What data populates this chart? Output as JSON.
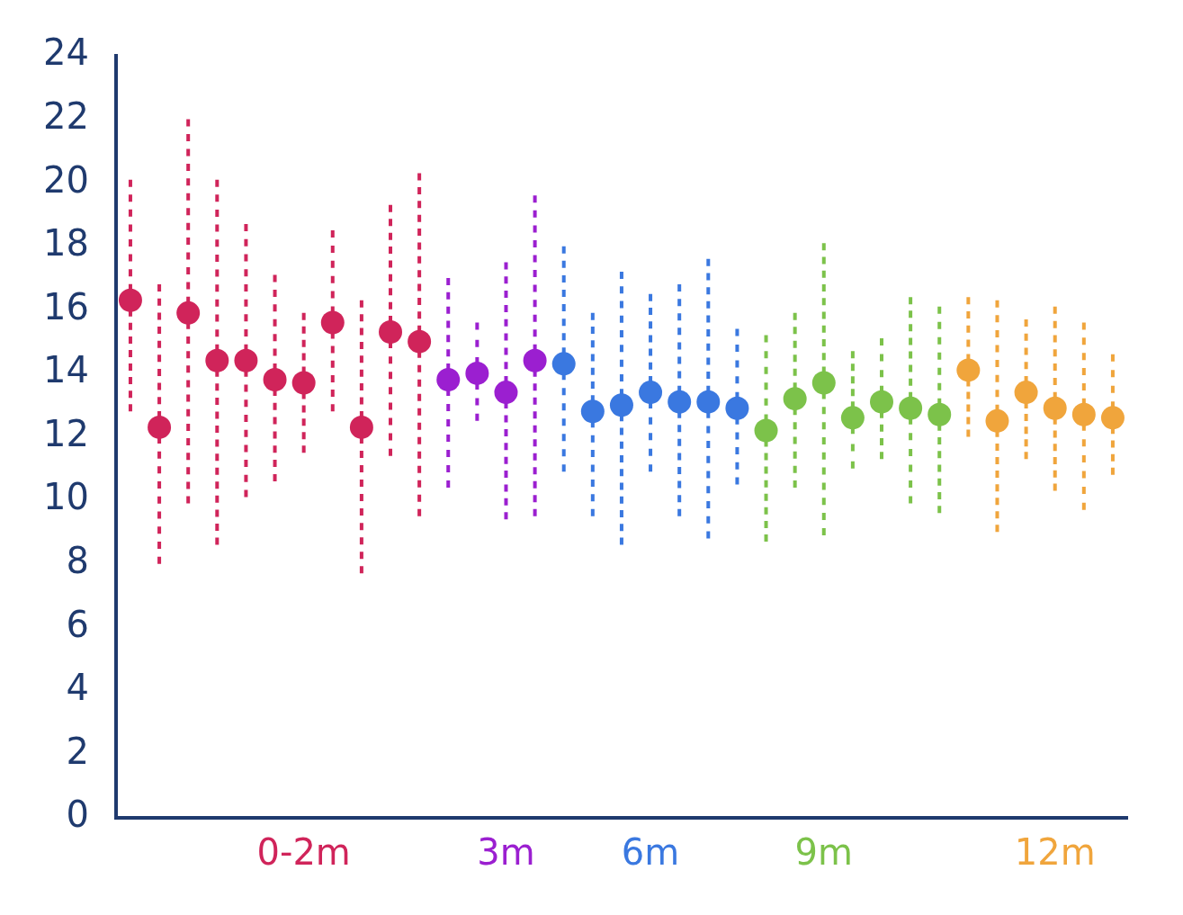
{
  "chart_data": {
    "type": "scatter",
    "categories": [
      null,
      null,
      null,
      null,
      null,
      null,
      "0-2m",
      null,
      null,
      null,
      null,
      null,
      null,
      "3m",
      null,
      null,
      null,
      null,
      "6m",
      null,
      null,
      null,
      null,
      null,
      "9m",
      null,
      null,
      null,
      null,
      null,
      null,
      null,
      "12m",
      null,
      null
    ],
    "series": [
      {
        "color": "#d0245a",
        "values": [
          16.3,
          12.3,
          15.9,
          14.4,
          14.4,
          13.8,
          13.7,
          15.6,
          12.3,
          15.3,
          15.0,
          null,
          null,
          null,
          null,
          null,
          null,
          null,
          null,
          null,
          null,
          null,
          null,
          null,
          null,
          null,
          null,
          null,
          null,
          null,
          null,
          null,
          null,
          null,
          null
        ],
        "errors": [
          [
            12.8,
            20.1
          ],
          [
            8.0,
            16.8
          ],
          [
            9.9,
            22.0
          ],
          [
            8.6,
            20.1
          ],
          [
            10.1,
            18.7
          ],
          [
            10.6,
            17.1
          ],
          [
            11.5,
            15.9
          ],
          [
            12.8,
            18.5
          ],
          [
            7.7,
            16.3
          ],
          [
            11.4,
            19.3
          ],
          [
            9.5,
            20.3
          ],
          null,
          null,
          null,
          null,
          null,
          null,
          null,
          null,
          null,
          null,
          null,
          null,
          null,
          null,
          null,
          null,
          null,
          null,
          null,
          null,
          null,
          null,
          null,
          null
        ]
      },
      {
        "color": "#9b1fd0",
        "values": [
          null,
          null,
          null,
          null,
          null,
          null,
          null,
          null,
          null,
          null,
          null,
          13.8,
          14.0,
          13.4,
          14.4,
          null,
          null,
          null,
          null,
          null,
          null,
          null,
          null,
          null,
          null,
          null,
          null,
          null,
          null,
          null,
          null,
          null,
          null,
          null,
          null
        ],
        "errors": [
          null,
          null,
          null,
          null,
          null,
          null,
          null,
          null,
          null,
          null,
          null,
          [
            10.4,
            17.0
          ],
          [
            12.5,
            15.6
          ],
          [
            9.4,
            17.5
          ],
          [
            9.5,
            19.6
          ],
          null,
          null,
          null,
          null,
          null,
          null,
          null,
          null,
          null,
          null,
          null,
          null,
          null,
          null,
          null,
          null,
          null,
          null,
          null,
          null
        ]
      },
      {
        "color": "#3a78e0",
        "values": [
          null,
          null,
          null,
          null,
          null,
          null,
          null,
          null,
          null,
          null,
          null,
          null,
          null,
          null,
          null,
          14.3,
          12.8,
          13.0,
          13.4,
          13.1,
          13.1,
          12.9,
          null,
          null,
          null,
          null,
          null,
          null,
          null,
          null,
          null,
          null,
          null,
          null,
          null
        ],
        "errors": [
          null,
          null,
          null,
          null,
          null,
          null,
          null,
          null,
          null,
          null,
          null,
          null,
          null,
          null,
          null,
          [
            10.9,
            18.0
          ],
          [
            9.5,
            15.9
          ],
          [
            8.6,
            17.2
          ],
          [
            10.9,
            16.5
          ],
          [
            9.5,
            16.8
          ],
          [
            8.8,
            17.6
          ],
          [
            10.5,
            15.4
          ],
          null,
          null,
          null,
          null,
          null,
          null,
          null,
          null,
          null,
          null,
          null,
          null,
          null
        ]
      },
      {
        "color": "#7cc24a",
        "values": [
          null,
          null,
          null,
          null,
          null,
          null,
          null,
          null,
          null,
          null,
          null,
          null,
          null,
          null,
          null,
          null,
          null,
          null,
          null,
          null,
          null,
          null,
          12.2,
          13.2,
          13.7,
          12.6,
          13.1,
          12.9,
          12.7,
          null,
          null,
          null,
          null,
          null,
          null
        ],
        "errors": [
          null,
          null,
          null,
          null,
          null,
          null,
          null,
          null,
          null,
          null,
          null,
          null,
          null,
          null,
          null,
          null,
          null,
          null,
          null,
          null,
          null,
          null,
          [
            8.7,
            15.2
          ],
          [
            10.4,
            15.9
          ],
          [
            8.9,
            18.1
          ],
          [
            11.0,
            14.7
          ],
          [
            11.3,
            15.1
          ],
          [
            9.9,
            16.4
          ],
          [
            9.6,
            16.1
          ],
          null,
          null,
          null,
          null,
          null,
          null
        ]
      },
      {
        "color": "#f0a53c",
        "values": [
          null,
          null,
          null,
          null,
          null,
          null,
          null,
          null,
          null,
          null,
          null,
          null,
          null,
          null,
          null,
          null,
          null,
          null,
          null,
          null,
          null,
          null,
          null,
          null,
          null,
          null,
          null,
          null,
          null,
          14.1,
          12.5,
          13.4,
          12.9,
          12.7,
          12.6
        ],
        "errors": [
          null,
          null,
          null,
          null,
          null,
          null,
          null,
          null,
          null,
          null,
          null,
          null,
          null,
          null,
          null,
          null,
          null,
          null,
          null,
          null,
          null,
          null,
          null,
          null,
          null,
          null,
          null,
          null,
          null,
          [
            12.0,
            16.4
          ],
          [
            9.0,
            16.3
          ],
          [
            11.3,
            15.7
          ],
          [
            10.3,
            16.1
          ],
          [
            9.7,
            15.6
          ],
          [
            10.8,
            14.6
          ]
        ]
      }
    ],
    "ylim": [
      0,
      24
    ],
    "yticks": [
      0,
      2,
      4,
      6,
      8,
      10,
      12,
      14,
      16,
      18,
      20,
      22,
      24
    ],
    "marker": "circle",
    "grid": false,
    "legend": false
  }
}
